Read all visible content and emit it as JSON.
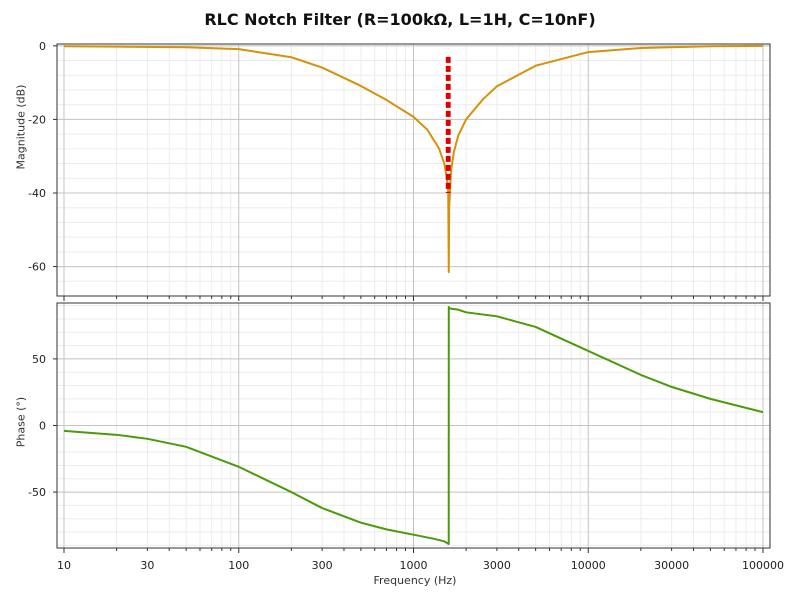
{
  "chart_data": [
    {
      "type": "line",
      "title": "RLC Notch Filter (R=100kΩ, L=1H, C=10nF)",
      "xlabel": "",
      "ylabel": "Magnitude (dB)",
      "xscale": "log",
      "xlim": [
        10,
        100000
      ],
      "ylim": [
        -68,
        0.5
      ],
      "yticks": [
        0,
        -20,
        -40,
        -60
      ],
      "grid": true,
      "color": "#d4920a",
      "series": [
        {
          "x": [
            10,
            20,
            50,
            100,
            200,
            300,
            500,
            700,
            1000,
            1200,
            1400,
            1500,
            1550,
            1580,
            1591.5,
            1600,
            1640,
            1700,
            1800,
            2000,
            2500,
            3000,
            5000,
            10000,
            20000,
            50000,
            100000
          ],
          "values": [
            -0.1,
            -0.2,
            -0.4,
            -0.9,
            -3.1,
            -5.9,
            -10.9,
            -14.7,
            -19.3,
            -22.8,
            -27.9,
            -32.0,
            -35.7,
            -39.5,
            -61.5,
            -44.0,
            -34.0,
            -29.0,
            -24.5,
            -20.0,
            -14.5,
            -11.0,
            -5.4,
            -1.7,
            -0.6,
            -0.1,
            0.0
          ]
        }
      ],
      "markers": {
        "type": "vertical-dashed-lines",
        "color": "#dd0000",
        "x": [
          1550,
          1580,
          1610
        ],
        "y_range": [
          -3,
          -40
        ]
      }
    },
    {
      "type": "line",
      "title": "",
      "xlabel": "Frequency (Hz)",
      "ylabel": "Phase (°)",
      "xscale": "log",
      "xlim": [
        10,
        100000
      ],
      "ylim": [
        -92,
        92
      ],
      "yticks": [
        50,
        0,
        -50
      ],
      "xticks": [
        10,
        30,
        100,
        300,
        1000,
        3000,
        10000,
        30000,
        100000
      ],
      "xtick_labels": [
        "10",
        "30",
        "100",
        "300",
        "1000",
        "3000",
        "10000",
        "30000",
        "100000"
      ],
      "grid": true,
      "color": "#4a9a0a",
      "series": [
        {
          "x": [
            10,
            20,
            30,
            50,
            100,
            200,
            300,
            500,
            700,
            1000,
            1300,
            1500,
            1591,
            1592,
            1600,
            1800,
            2000,
            3000,
            5000,
            10000,
            20000,
            30000,
            50000,
            100000
          ],
          "values": [
            -4,
            -7,
            -10,
            -16,
            -31,
            -50,
            -62,
            -73,
            -78,
            -82,
            -85,
            -87,
            -89,
            89,
            88,
            87,
            85,
            82,
            74,
            56,
            38,
            29,
            20,
            10
          ]
        }
      ]
    }
  ]
}
